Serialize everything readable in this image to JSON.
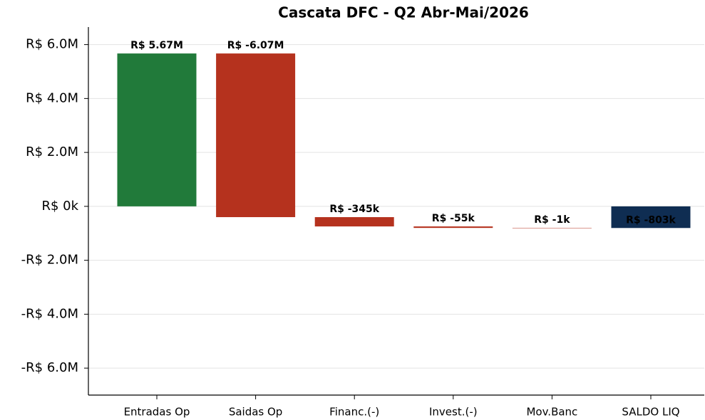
{
  "chart_data": {
    "type": "waterfall",
    "title": "Cascata DFC - Q2 Abr-Mai/2026",
    "categories": [
      "Entradas Op",
      "Saidas Op",
      "Financ.(-)",
      "Invest.(-)",
      "Mov.Banc",
      "SALDO LIQ"
    ],
    "values": [
      5670000,
      -6070000,
      -345000,
      -55000,
      -1000,
      -803000
    ],
    "value_labels": [
      "R$ 5.67M",
      "R$ -6.07M",
      "R$ -345k",
      "R$ -55k",
      "R$ -1k",
      "R$ -803k"
    ],
    "is_total": [
      false,
      false,
      false,
      false,
      false,
      true
    ],
    "colors": [
      "#217a3a",
      "#b5321e",
      "#b5321e",
      "#b5321e",
      "#b5321e",
      "#0f2d52"
    ],
    "ylim": [
      -7000000,
      6650000
    ],
    "yticks": [
      {
        "value": -6000000,
        "label": "-R$ 6.0M"
      },
      {
        "value": -4000000,
        "label": "-R$ 4.0M"
      },
      {
        "value": -2000000,
        "label": "-R$ 2.0M"
      },
      {
        "value": 0,
        "label": "R$ 0k"
      },
      {
        "value": 2000000,
        "label": "R$ 2.0M"
      },
      {
        "value": 4000000,
        "label": "R$ 4.0M"
      },
      {
        "value": 6000000,
        "label": "R$ 6.0M"
      }
    ],
    "grid": true
  }
}
